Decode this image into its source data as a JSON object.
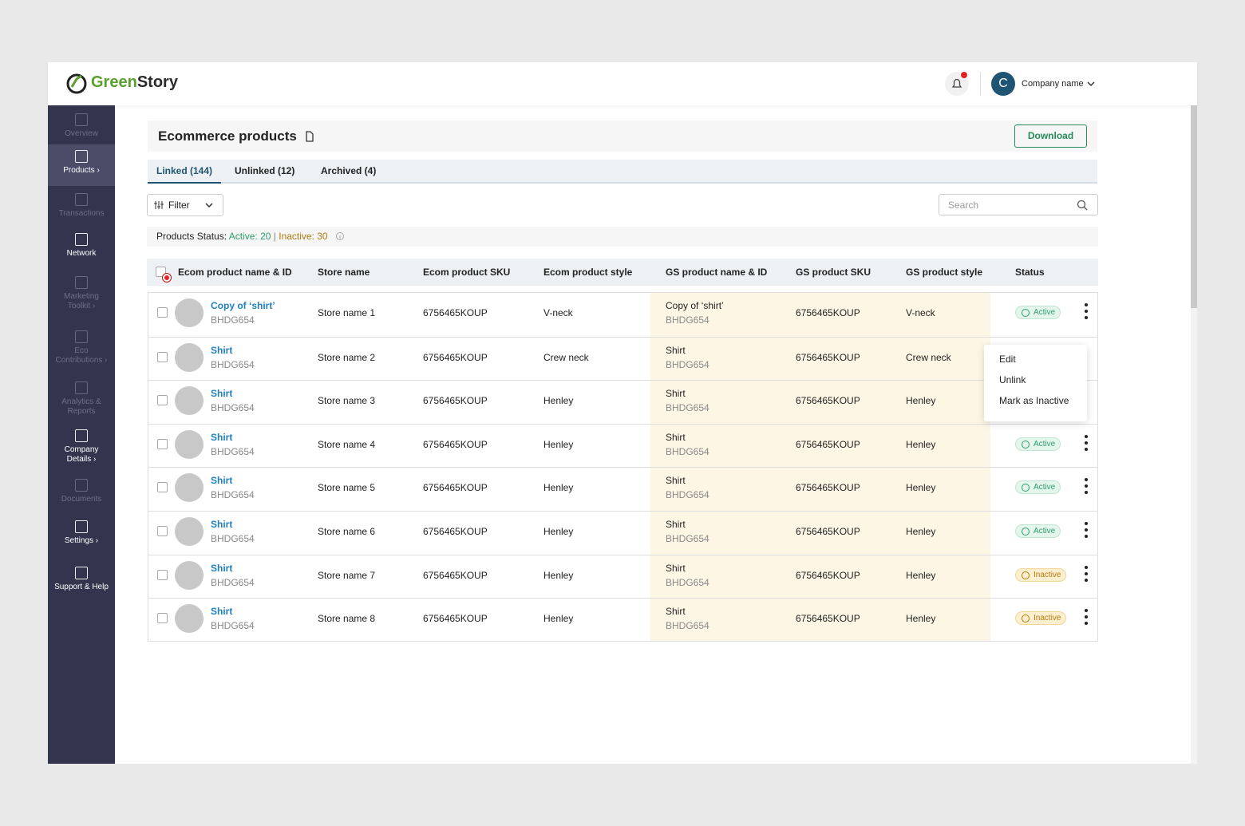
{
  "header": {
    "brand": {
      "first": "Green",
      "second": "Story"
    },
    "avatar_initial": "C",
    "company_name": "Company name"
  },
  "sidebar": {
    "items": [
      {
        "label": "Overview",
        "state": "disabled"
      },
      {
        "label": "Products ›",
        "state": "active"
      },
      {
        "label": "Transactions",
        "state": "disabled"
      },
      {
        "label": "Network",
        "state": "enabled"
      },
      {
        "label": "Marketing Toolkit ›",
        "state": "disabled"
      },
      {
        "label": "Eco Contributions ›",
        "state": "disabled"
      },
      {
        "label": "Analytics & Reports",
        "state": "disabled"
      },
      {
        "label": "Company Details ›",
        "state": "enabled"
      },
      {
        "label": "Documents",
        "state": "disabled"
      },
      {
        "label": "Settings ›",
        "state": "enabled"
      },
      {
        "label": "Support & Help",
        "state": "enabled"
      }
    ]
  },
  "page": {
    "title": "Ecommerce products",
    "download": "Download",
    "tabs": [
      "Linked (144)",
      "Unlinked (12)",
      "Archived (4)"
    ],
    "filter": "Filter",
    "search_placeholder": "Search",
    "status_bar": {
      "label": "Products Status:",
      "active": "Active: 20",
      "separator": "|",
      "inactive": "Inactive: 30"
    }
  },
  "status_styles": {
    "Active": {
      "color": "#2f9c6c",
      "bg": "#e4f5ec",
      "border": "#bfe6d1"
    },
    "Inactive": {
      "color": "#b07a10",
      "bg": "#fcefcf",
      "border": "#f0d79a"
    }
  },
  "table": {
    "columns": [
      "Ecom product name & ID",
      "Store name",
      "Ecom product SKU",
      "Ecom product style",
      "GS product name & ID",
      "GS product SKU",
      "GS product style",
      "Status"
    ],
    "rows": [
      {
        "name": "Copy of ‘shirt’",
        "id": "BHDG654",
        "store": "Store name 1",
        "sku": "6756465KOUP",
        "style": "V-neck",
        "gs_name": "Copy of ‘shirt’",
        "gs_id": "BHDG654",
        "gs_sku": "6756465KOUP",
        "gs_style": "V-neck",
        "status": "Active"
      },
      {
        "name": "Shirt",
        "id": "BHDG654",
        "store": "Store name 2",
        "sku": "6756465KOUP",
        "style": "Crew neck",
        "gs_name": "Shirt",
        "gs_id": "BHDG654",
        "gs_sku": "6756465KOUP",
        "gs_style": "Crew neck"
      },
      {
        "name": "Shirt",
        "id": "BHDG654",
        "store": "Store name 3",
        "sku": "6756465KOUP",
        "style": "Henley",
        "gs_name": "Shirt",
        "gs_id": "BHDG654",
        "gs_sku": "6756465KOUP",
        "gs_style": "Henley"
      },
      {
        "name": "Shirt",
        "id": "BHDG654",
        "store": "Store name 4",
        "sku": "6756465KOUP",
        "style": "Henley",
        "gs_name": "Shirt",
        "gs_id": "BHDG654",
        "gs_sku": "6756465KOUP",
        "gs_style": "Henley",
        "status": "Active"
      },
      {
        "name": "Shirt",
        "id": "BHDG654",
        "store": "Store name 5",
        "sku": "6756465KOUP",
        "style": "Henley",
        "gs_name": "Shirt",
        "gs_id": "BHDG654",
        "gs_sku": "6756465KOUP",
        "gs_style": "Henley",
        "status": "Active"
      },
      {
        "name": "Shirt",
        "id": "BHDG654",
        "store": "Store name 6",
        "sku": "6756465KOUP",
        "style": "Henley",
        "gs_name": "Shirt",
        "gs_id": "BHDG654",
        "gs_sku": "6756465KOUP",
        "gs_style": "Henley",
        "status": "Active"
      },
      {
        "name": "Shirt",
        "id": "BHDG654",
        "store": "Store name 7",
        "sku": "6756465KOUP",
        "style": "Henley",
        "gs_name": "Shirt",
        "gs_id": "BHDG654",
        "gs_sku": "6756465KOUP",
        "gs_style": "Henley",
        "status": "Inactive"
      },
      {
        "name": "Shirt",
        "id": "BHDG654",
        "store": "Store name 8",
        "sku": "6756465KOUP",
        "style": "Henley",
        "gs_name": "Shirt",
        "gs_id": "BHDG654",
        "gs_sku": "6756465KOUP",
        "gs_style": "Henley",
        "status": "Inactive"
      }
    ]
  },
  "context_menu": [
    "Edit",
    "Unlink",
    "Mark as Inactive"
  ]
}
